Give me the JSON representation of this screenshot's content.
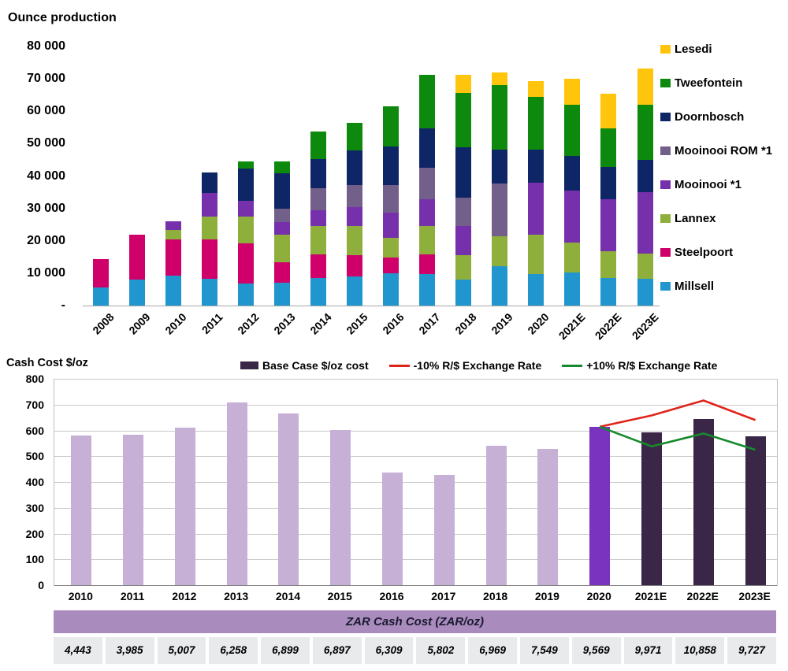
{
  "chart_data": [
    {
      "type": "bar",
      "stacked": true,
      "title": "Ounce production",
      "ylim": [
        0,
        80000
      ],
      "y_tick_labels": [
        "80 000",
        "70 000",
        "60 000",
        "50 000",
        "40 000",
        "30 000",
        "20 000",
        "10 000",
        "-"
      ],
      "categories": [
        "2008",
        "2009",
        "2010",
        "2011",
        "2012",
        "2013",
        "2014",
        "2015",
        "2016",
        "2017",
        "2018",
        "2019",
        "2020",
        "2021E",
        "2022E",
        "2023E"
      ],
      "legend_position": "right",
      "series": [
        {
          "name": "Millsell",
          "color": "#2196CE",
          "values": [
            5500,
            8000,
            9300,
            8300,
            6800,
            7000,
            8500,
            9000,
            10000,
            9800,
            8000,
            12200,
            9800,
            10200,
            8500,
            8300
          ]
        },
        {
          "name": "Steelpoort",
          "color": "#D0006A",
          "values": [
            8800,
            13900,
            11200,
            12200,
            12400,
            6300,
            7300,
            6600,
            4900,
            5900,
            0,
            0,
            0,
            0,
            0,
            0
          ]
        },
        {
          "name": "Lannex",
          "color": "#8FAF3C",
          "values": [
            0,
            0,
            2900,
            7100,
            8300,
            8500,
            8800,
            9000,
            5900,
            8800,
            7600,
            9300,
            12000,
            9300,
            8300,
            7800
          ]
        },
        {
          "name": "Mooinooi *1",
          "color": "#7630AC",
          "values": [
            0,
            0,
            2700,
            7100,
            4900,
            4100,
            4900,
            5900,
            7800,
            8300,
            9000,
            0,
            16100,
            16100,
            16100,
            19000
          ]
        },
        {
          "name": "Mooinooi ROM *1",
          "color": "#73608A",
          "values": [
            0,
            0,
            0,
            0,
            0,
            4000,
            6800,
            6800,
            8500,
            9800,
            8800,
            16100,
            0,
            0,
            0,
            0
          ]
        },
        {
          "name": "Doornbosch",
          "color": "#0F2666",
          "values": [
            0,
            0,
            0,
            6300,
            10000,
            11000,
            9000,
            10500,
            12000,
            12000,
            15400,
            10500,
            10200,
            10500,
            9800,
            10000
          ]
        },
        {
          "name": "Tweefontein",
          "color": "#0D8A0D",
          "values": [
            0,
            0,
            0,
            0,
            2000,
            3600,
            8500,
            8600,
            12400,
            16600,
            16800,
            20000,
            16300,
            15900,
            12000,
            16800
          ]
        },
        {
          "name": "Lesedi",
          "color": "#FFC50D",
          "values": [
            0,
            0,
            0,
            0,
            0,
            0,
            0,
            0,
            0,
            0,
            5600,
            3900,
            4900,
            8000,
            10700,
            11200
          ]
        }
      ]
    },
    {
      "type": "bar",
      "title": "Cash Cost $/oz",
      "ylim": [
        0,
        800
      ],
      "y_tick_labels": [
        "800",
        "700",
        "600",
        "500",
        "400",
        "300",
        "200",
        "100",
        "0"
      ],
      "categories": [
        "2010",
        "2011",
        "2012",
        "2013",
        "2014",
        "2015",
        "2016",
        "2017",
        "2018",
        "2019",
        "2020",
        "2021E",
        "2022E",
        "2023E"
      ],
      "bars": {
        "name": "Base Case $/oz cost",
        "legend_color": "#3A2647",
        "values": [
          580,
          582,
          610,
          707,
          665,
          603,
          438,
          428,
          542,
          528,
          614,
          592,
          645,
          578
        ],
        "colors": [
          "#C7B0D6",
          "#C7B0D6",
          "#C7B0D6",
          "#C7B0D6",
          "#C7B0D6",
          "#C7B0D6",
          "#C7B0D6",
          "#C7B0D6",
          "#C7B0D6",
          "#C7B0D6",
          "#7A33BE",
          "#3A2647",
          "#3A2647",
          "#3A2647"
        ]
      },
      "lines": [
        {
          "name": "-10% R/$ Exchange Rate",
          "color": "#E0241B",
          "start_index": 10,
          "values": [
            614,
            658,
            716,
            640
          ]
        },
        {
          "name": "+10% R/$ Exchange Rate",
          "color": "#168A2C",
          "start_index": 10,
          "values": [
            614,
            538,
            588,
            525
          ]
        }
      ]
    },
    {
      "type": "table",
      "title": "ZAR Cash Cost (ZAR/oz)",
      "header_bg": "#A98BBE",
      "cell_bg": "#E9EAEC",
      "values": [
        "4,443",
        "3,985",
        "5,007",
        "6,258",
        "6,899",
        "6,897",
        "6,309",
        "5,802",
        "6,969",
        "7,549",
        "9,569",
        "9,971",
        "10,858",
        "9,727"
      ]
    }
  ]
}
